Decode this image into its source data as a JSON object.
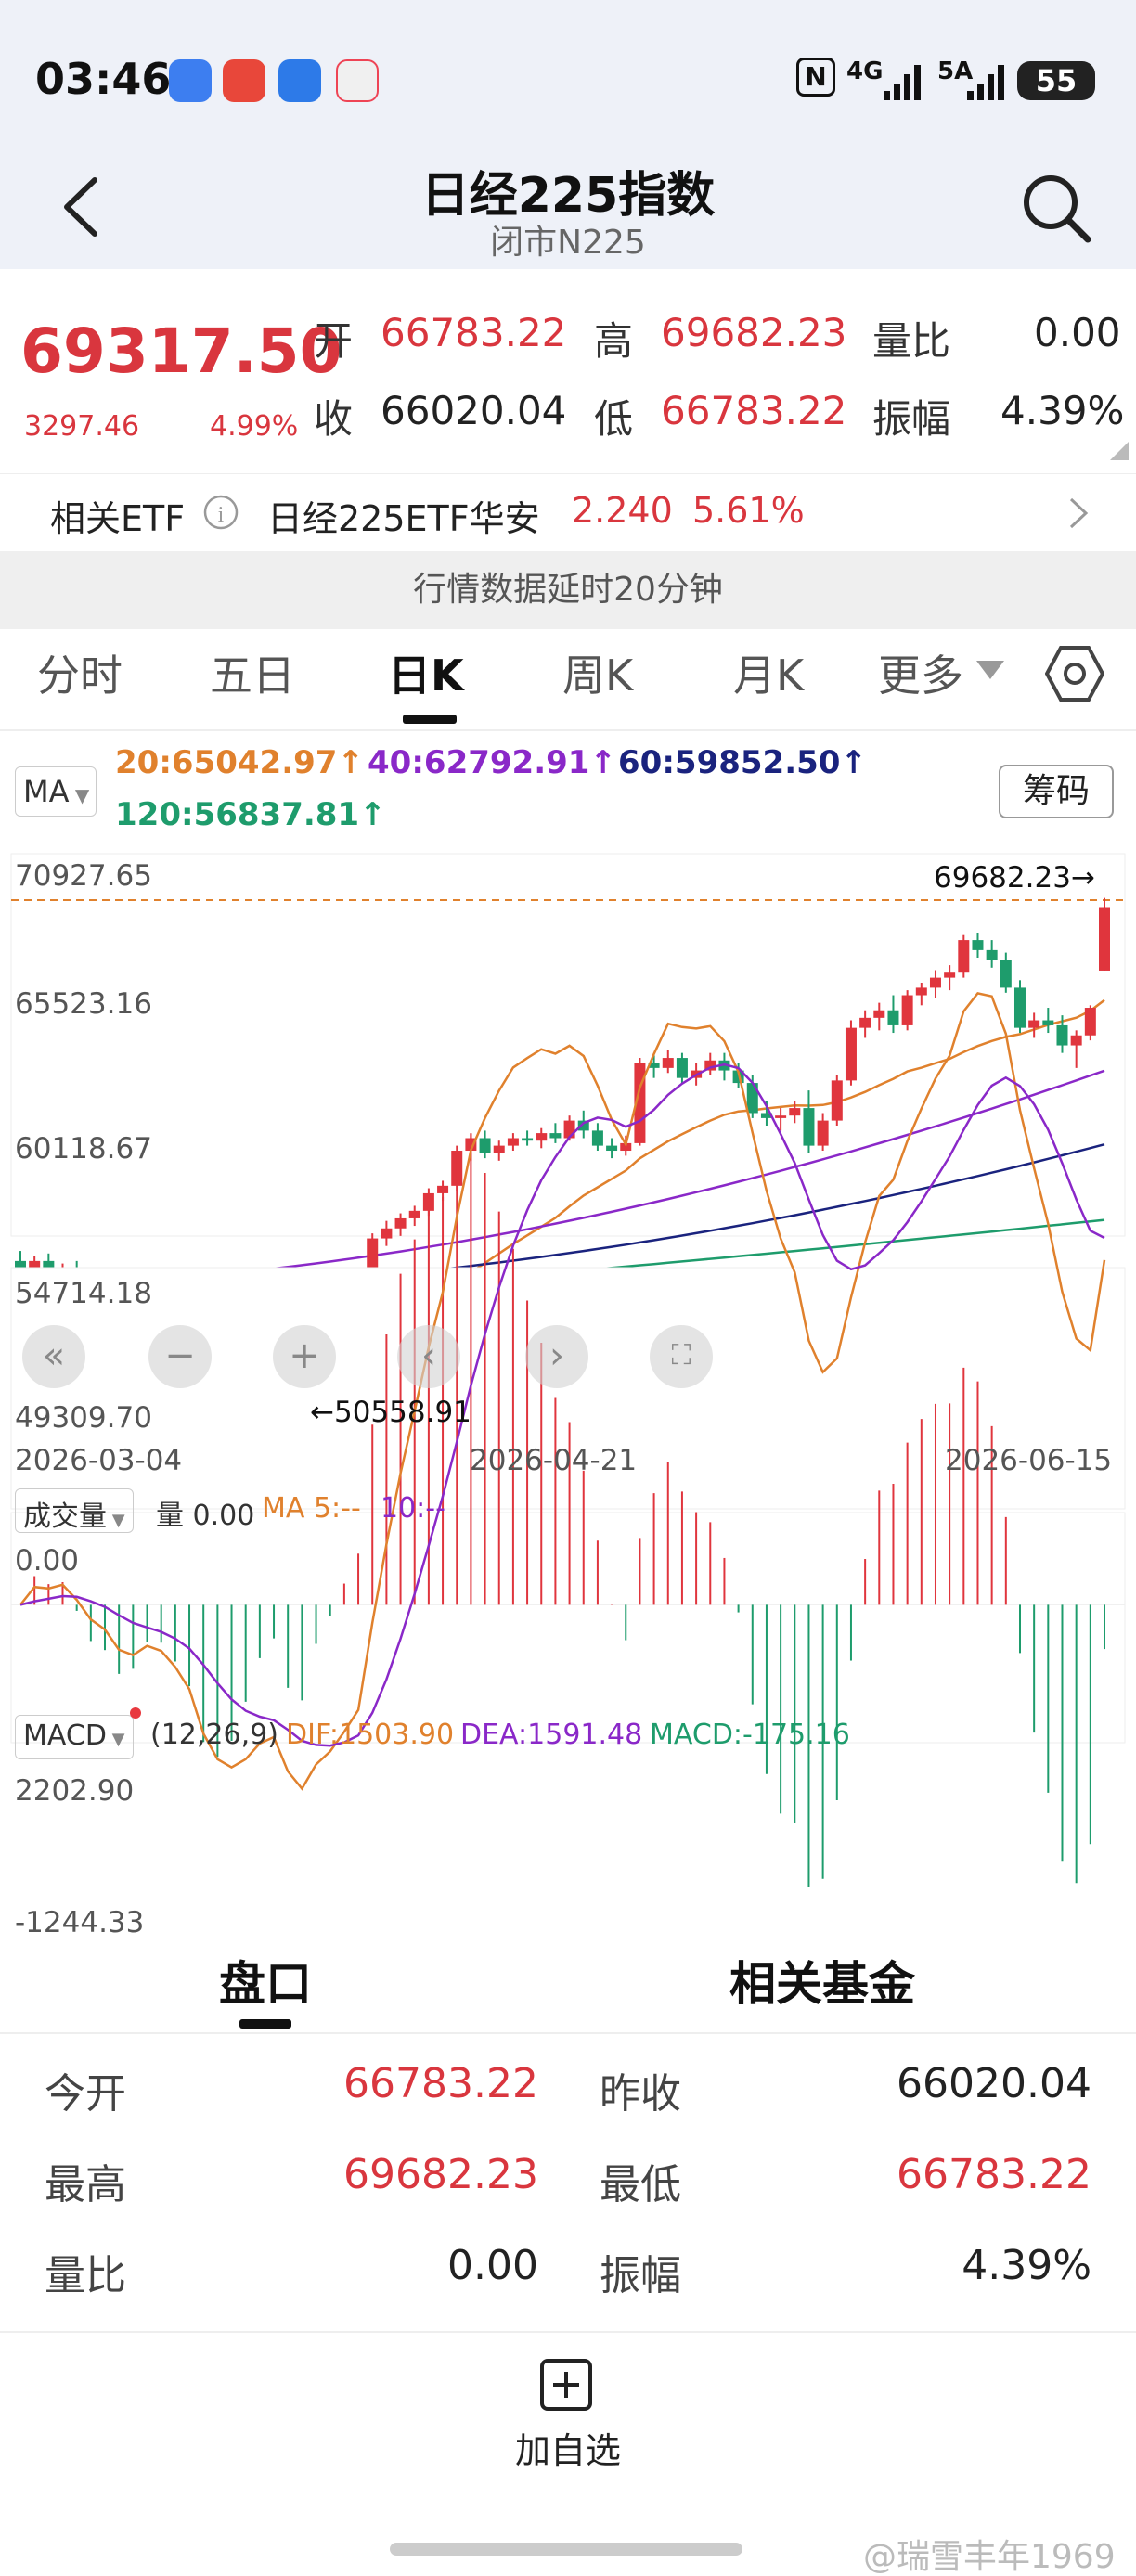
{
  "status": {
    "time": "03:46",
    "net1": "4G",
    "net2": "5A",
    "battery": "55",
    "nfc": "N"
  },
  "header": {
    "title": "日经225指数",
    "subtitle": "闭市N225"
  },
  "quote": {
    "price": "69317.50",
    "change": "3297.46",
    "change_pct": "4.99%",
    "open_label": "开",
    "open": "66783.22",
    "high_label": "高",
    "high": "69682.23",
    "vol_ratio_label": "量比",
    "vol_ratio": "0.00",
    "prev_close_label": "收",
    "prev_close": "66020.04",
    "low_label": "低",
    "low": "66783.22",
    "amplitude_label": "振幅",
    "amplitude": "4.39%"
  },
  "etf": {
    "label": "相关ETF",
    "name": "日经225ETF华安",
    "price": "2.240",
    "pct": "5.61%"
  },
  "delay_notice": "行情数据延时20分钟",
  "tabs": [
    "分时",
    "五日",
    "日K",
    "周K",
    "月K",
    "更多"
  ],
  "ma_panel": {
    "selector": "MA",
    "chips_button": "筹码",
    "ma20": "20:65042.97↑",
    "ma40": "40:62792.91↑",
    "ma60": "60:59852.50↑",
    "ma120": "120:56837.81↑"
  },
  "axis": {
    "y_top": "70927.65",
    "y2": "65523.16",
    "y3": "60118.67",
    "y4": "54714.18",
    "y_bottom": "49309.70",
    "high_marker": "69682.23→",
    "low_marker": "←50558.91",
    "x_start": "2026-03-04",
    "x_mid": "2026-04-21",
    "x_end": "2026-06-15"
  },
  "volume_panel": {
    "selector": "成交量",
    "vol": "量 0.00",
    "ma5": "MA 5:--",
    "ma10": "10:--",
    "y": "0.00"
  },
  "macd_panel": {
    "selector": "MACD",
    "params": "(12,26,9)",
    "dif": "DIF:1503.90",
    "dea": "DEA:1591.48",
    "macd": "MACD:-175.16",
    "y_top": "2202.90",
    "y_bottom": "-1244.33"
  },
  "bottom_tabs": {
    "tab1": "盘口",
    "tab2": "相关基金"
  },
  "info": {
    "open_label": "今开",
    "open": "66783.22",
    "prev_label": "昨收",
    "prev": "66020.04",
    "high_label": "最高",
    "high": "69682.23",
    "low_label": "最低",
    "low": "66783.22",
    "ratio_label": "量比",
    "ratio": "0.00",
    "amp_label": "振幅",
    "amp": "4.39%"
  },
  "footer": {
    "add_label": "加自选",
    "watermark": "@瑞雪丰年1969"
  },
  "chart_data": {
    "type": "candlestick",
    "y_range": [
      49309.7,
      70927.65
    ],
    "x_labels": [
      "2026-03-04",
      "2026-04-21",
      "2026-06-15"
    ],
    "candles_ohlc": [
      [
        55200,
        55600,
        54200,
        54500
      ],
      [
        54500,
        55400,
        53900,
        55200
      ],
      [
        55200,
        55500,
        54300,
        54600
      ],
      [
        54600,
        55100,
        54000,
        54800
      ],
      [
        54800,
        55200,
        53800,
        54100
      ],
      [
        54100,
        54400,
        53600,
        53800
      ],
      [
        53800,
        54300,
        53300,
        54000
      ],
      [
        54000,
        54200,
        53200,
        53500
      ],
      [
        53500,
        54000,
        53100,
        53900
      ],
      [
        53900,
        54600,
        53600,
        54400
      ],
      [
        54400,
        54900,
        53600,
        53900
      ],
      [
        53900,
        54200,
        53200,
        53400
      ],
      [
        53400,
        53800,
        52600,
        53000
      ],
      [
        53000,
        53300,
        51600,
        51900
      ],
      [
        51900,
        52400,
        51200,
        52200
      ],
      [
        52200,
        52900,
        51800,
        52600
      ],
      [
        52600,
        53300,
        52300,
        53100
      ],
      [
        53100,
        53600,
        52800,
        53400
      ],
      [
        53400,
        53700,
        52900,
        53100
      ],
      [
        53100,
        53300,
        50558.91,
        51500
      ],
      [
        51500,
        52100,
        51000,
        51800
      ],
      [
        51800,
        53400,
        51600,
        53200
      ],
      [
        53200,
        53500,
        52600,
        52900
      ],
      [
        52900,
        53400,
        52600,
        53200
      ],
      [
        53200,
        53800,
        52900,
        53400
      ],
      [
        53400,
        56300,
        53300,
        56100
      ],
      [
        56100,
        56800,
        55800,
        56500
      ],
      [
        56500,
        57100,
        56200,
        56900
      ],
      [
        56900,
        57400,
        56600,
        57200
      ],
      [
        57200,
        58100,
        57000,
        57900
      ],
      [
        57900,
        58400,
        57600,
        58200
      ],
      [
        58200,
        59800,
        58000,
        59600
      ],
      [
        59600,
        60300,
        59200,
        60100
      ],
      [
        60100,
        60400,
        59300,
        59500
      ],
      [
        59500,
        60000,
        59200,
        59800
      ],
      [
        59800,
        60300,
        59600,
        60100
      ],
      [
        60100,
        60400,
        59800,
        60000
      ],
      [
        60000,
        60500,
        59700,
        60300
      ],
      [
        60300,
        60700,
        59900,
        60100
      ],
      [
        60100,
        61000,
        60000,
        60800
      ],
      [
        60800,
        61200,
        60100,
        60400
      ],
      [
        60400,
        60700,
        59600,
        59800
      ],
      [
        59800,
        60100,
        59300,
        59600
      ],
      [
        59600,
        60200,
        59400,
        59900
      ],
      [
        59900,
        63300,
        59800,
        63100
      ],
      [
        63100,
        63400,
        62500,
        62900
      ],
      [
        62900,
        63600,
        62700,
        63300
      ],
      [
        63300,
        63500,
        62300,
        62500
      ],
      [
        62500,
        63100,
        62200,
        62800
      ],
      [
        62800,
        63500,
        62600,
        63200
      ],
      [
        63200,
        63500,
        62400,
        62800
      ],
      [
        62800,
        63100,
        62100,
        62300
      ],
      [
        62300,
        62600,
        60900,
        61100
      ],
      [
        61100,
        61600,
        60600,
        60900
      ],
      [
        60900,
        61300,
        60400,
        61000
      ],
      [
        61000,
        61600,
        60700,
        61300
      ],
      [
        61300,
        62000,
        59500,
        59800
      ],
      [
        59800,
        61100,
        59600,
        60800
      ],
      [
        60800,
        62600,
        60600,
        62400
      ],
      [
        62400,
        64800,
        62200,
        64500
      ],
      [
        64500,
        65200,
        64100,
        64900
      ],
      [
        64900,
        65500,
        64400,
        65200
      ],
      [
        65200,
        65800,
        64300,
        64600
      ],
      [
        64600,
        66000,
        64400,
        65800
      ],
      [
        65800,
        66300,
        65400,
        66100
      ],
      [
        66100,
        66800,
        65700,
        66500
      ],
      [
        66500,
        67000,
        66000,
        66700
      ],
      [
        66700,
        68200,
        66500,
        68000
      ],
      [
        68000,
        68300,
        67300,
        67600
      ],
      [
        67600,
        68000,
        66900,
        67200
      ],
      [
        67200,
        67500,
        65900,
        66100
      ],
      [
        66100,
        66400,
        64300,
        64500
      ],
      [
        64500,
        65100,
        64100,
        64800
      ],
      [
        64800,
        65300,
        64300,
        64600
      ],
      [
        64600,
        65000,
        63500,
        63800
      ],
      [
        63800,
        64400,
        62900,
        64200
      ],
      [
        64200,
        65400,
        64000,
        65300
      ],
      [
        66783.22,
        69682.23,
        66783.22,
        69317.5
      ]
    ],
    "ma_series": [
      {
        "name": "MA20",
        "last": 65042.97
      },
      {
        "name": "MA40",
        "last": 62792.91
      },
      {
        "name": "MA60",
        "last": 59852.5
      },
      {
        "name": "MA120",
        "last": 56837.81
      }
    ],
    "macd": {
      "dif": 1503.9,
      "dea": 1591.48,
      "macd": -175.16,
      "range": [
        -1244.33,
        2202.9
      ]
    }
  }
}
